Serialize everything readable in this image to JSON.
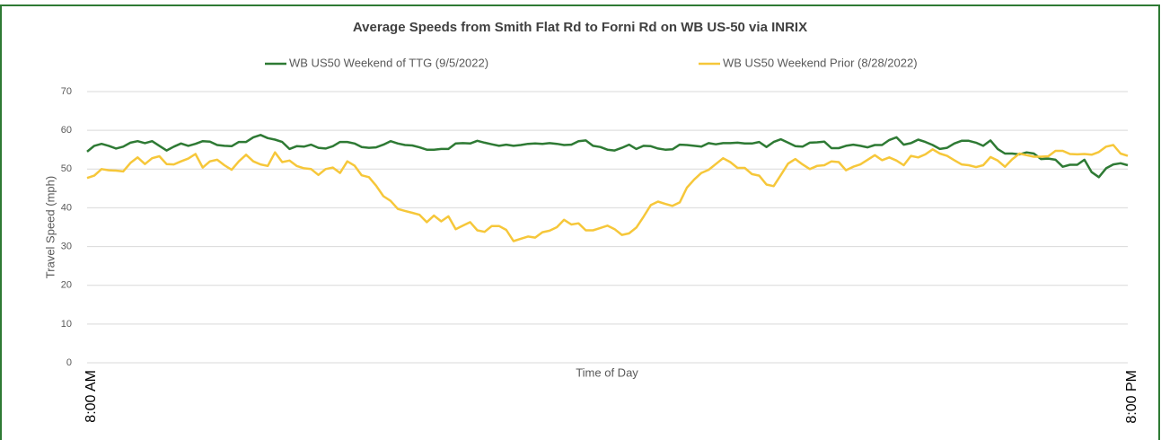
{
  "chart_data": {
    "type": "line",
    "title": "Average Speeds from Smith Flat Rd to Forni Rd on WB US-50 via INRIX",
    "x_label": "Time of Day",
    "y_label": "Travel Speed (mph)",
    "categories": [
      "8:00 AM",
      null,
      null,
      null,
      null,
      null,
      null,
      null,
      null,
      null,
      null,
      null,
      null,
      null,
      null,
      null,
      null,
      null,
      null,
      null,
      null,
      null,
      null,
      null,
      null,
      null,
      null,
      null,
      null,
      null,
      null,
      null,
      null,
      null,
      null,
      null,
      null,
      null,
      null,
      null,
      null,
      null,
      null,
      null,
      null,
      null,
      null,
      null,
      null,
      null,
      null,
      null,
      null,
      null,
      null,
      null,
      null,
      null,
      null,
      null,
      null,
      null,
      null,
      null,
      null,
      null,
      null,
      null,
      null,
      null,
      null,
      null,
      null,
      null,
      null,
      null,
      null,
      null,
      null,
      null,
      null,
      null,
      null,
      null,
      null,
      null,
      null,
      null,
      null,
      null,
      null,
      null,
      null,
      null,
      null,
      null,
      null,
      null,
      null,
      null,
      null,
      null,
      null,
      null,
      null,
      null,
      null,
      null,
      null,
      null,
      null,
      null,
      null,
      null,
      null,
      null,
      null,
      null,
      null,
      null,
      null,
      null,
      null,
      null,
      null,
      null,
      null,
      null,
      null,
      null,
      null,
      null,
      null,
      null,
      null,
      null,
      null,
      null,
      null,
      null,
      null,
      null,
      null,
      null,
      "8:00 PM"
    ],
    "series": [
      {
        "name": "WB US50 Weekend of TTG (9/5/2022)",
        "color": "#2e7a34",
        "values": [
          54.5,
          56,
          56.5,
          56,
          55.3,
          55.8,
          56.8,
          57.2,
          56.7,
          57.2,
          56,
          54.8,
          55.8,
          56.6,
          56,
          56.5,
          57.2,
          57.1,
          56.2,
          56,
          55.9,
          57,
          57,
          58.2,
          58.8,
          58,
          57.6,
          57,
          55.2,
          55.9,
          55.8,
          56.3,
          55.5,
          55.3,
          55.9,
          57,
          57,
          56.6,
          55.7,
          55.5,
          55.6,
          56.3,
          57.2,
          56.6,
          56.2,
          56.1,
          55.6,
          55,
          55,
          55.2,
          55.2,
          56.6,
          56.7,
          56.6,
          57.3,
          56.8,
          56.4,
          56,
          56.3,
          56,
          56.2,
          56.5,
          56.6,
          56.5,
          56.7,
          56.5,
          56.2,
          56.3,
          57.2,
          57.4,
          56,
          55.7,
          55,
          54.8,
          55.5,
          56.3,
          55.2,
          56,
          55.9,
          55.3,
          55,
          55.1,
          56.3,
          56.2,
          56,
          55.8,
          56.7,
          56.4,
          56.7,
          56.7,
          56.8,
          56.6,
          56.6,
          57,
          55.7,
          57,
          57.7,
          56.8,
          55.9,
          55.8,
          56.8,
          56.9,
          57.1,
          55.4,
          55.4,
          56,
          56.3,
          56,
          55.6,
          56.2,
          56.2,
          57.5,
          58.2,
          56.3,
          56.7,
          57.6,
          57,
          56.2,
          55.2,
          55.5,
          56.6,
          57.3,
          57.3,
          56.8,
          56,
          57.4,
          55.2,
          54,
          54,
          53.8,
          54.3,
          54,
          52.6,
          52.7,
          52.4,
          50.6,
          51.1,
          51.1,
          52.4,
          49.2,
          47.9,
          50.2,
          51.2,
          51.5,
          51
        ]
      },
      {
        "name": "WB US50 Weekend Prior (8/28/2022)",
        "color": "#f6c73a",
        "values": [
          47.7,
          48.3,
          50,
          49.7,
          49.6,
          49.4,
          51.6,
          53,
          51.3,
          52.8,
          53.3,
          51.3,
          51.2,
          52,
          52.7,
          53.9,
          50.4,
          52,
          52.4,
          51,
          49.8,
          52,
          53.7,
          52,
          51.2,
          50.8,
          54.3,
          51.8,
          52.2,
          50.8,
          50.2,
          50,
          48.5,
          50,
          50.4,
          49,
          52,
          50.9,
          48.4,
          47.9,
          45.7,
          43,
          41.8,
          39.7,
          39.2,
          38.7,
          38.2,
          36.3,
          38,
          36.5,
          37.8,
          34.5,
          35.4,
          36.3,
          34.2,
          33.8,
          35.3,
          35.3,
          34.3,
          31.4,
          32,
          32.6,
          32.3,
          33.7,
          34.1,
          35,
          36.9,
          35.7,
          36,
          34.2,
          34.2,
          34.8,
          35.4,
          34.5,
          33,
          33.4,
          34.9,
          37.7,
          40.7,
          41.6,
          41,
          40.5,
          41.4,
          45.2,
          47.3,
          49,
          49.8,
          51.3,
          52.8,
          51.8,
          50.3,
          50.3,
          48.7,
          48.3,
          46,
          45.6,
          48.5,
          51.4,
          52.6,
          51.2,
          50,
          50.8,
          51,
          52,
          51.8,
          49.7,
          50.6,
          51.2,
          52.4,
          53.6,
          52.3,
          53,
          52.2,
          51,
          53.4,
          53,
          53.8,
          55.1,
          54,
          53.4,
          52.3,
          51.2,
          51,
          50.5,
          51,
          53.1,
          52.2,
          50.6,
          52.5,
          54,
          53.6,
          53.2,
          53.2,
          53.3,
          54.7,
          54.7,
          53.9,
          53.8,
          53.9,
          53.7,
          54.4,
          55.8,
          56.2,
          54,
          53.4
        ]
      }
    ],
    "ylim": [
      0,
      70
    ],
    "yticks": [
      0,
      10,
      20,
      30,
      40,
      50,
      60,
      70
    ],
    "grid": true,
    "legend": "top"
  }
}
